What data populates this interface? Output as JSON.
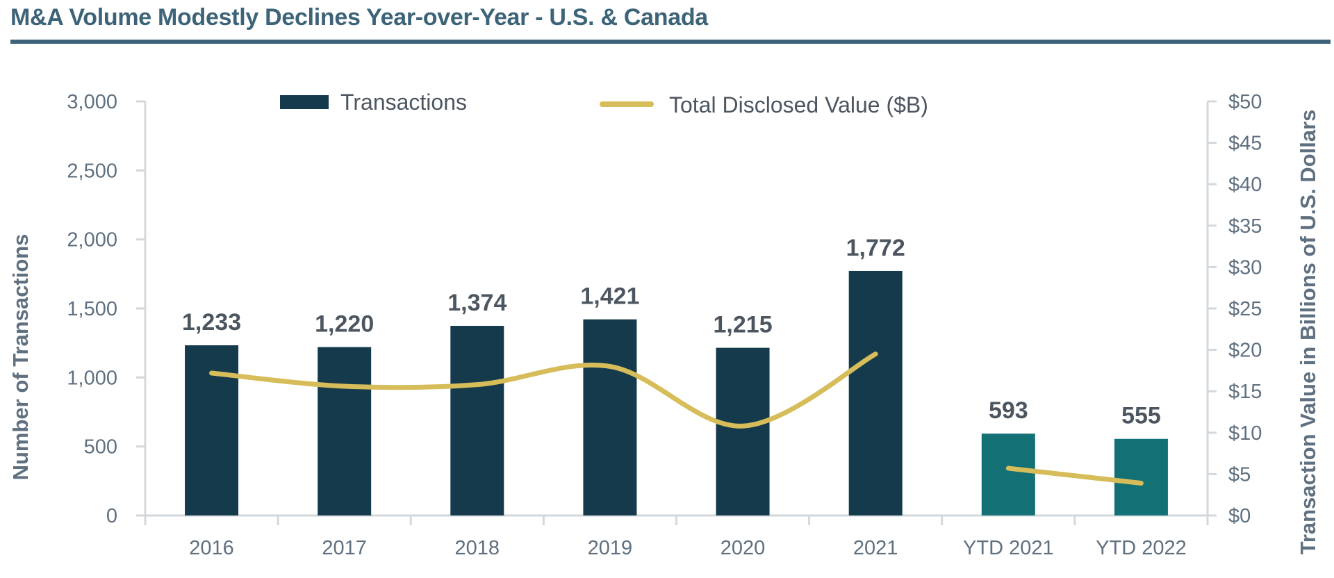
{
  "title": "M&A Volume Modestly Declines Year-over-Year - U.S. & Canada",
  "colors": {
    "title": "#3c6378",
    "bar_primary": "#143a4c",
    "bar_ytd": "#137074",
    "line": "#d6bd5a",
    "axis": "#d3d8dd",
    "text": "#5f7080"
  },
  "chart_data": {
    "type": "bar",
    "categories": [
      "2016",
      "2017",
      "2018",
      "2019",
      "2020",
      "2021",
      "YTD 2021",
      "YTD 2022"
    ],
    "series": [
      {
        "name": "Transactions",
        "kind": "bar",
        "axis": "left",
        "values": [
          1233,
          1220,
          1374,
          1421,
          1215,
          1772,
          593,
          555
        ],
        "labels": [
          "1,233",
          "1,220",
          "1,374",
          "1,421",
          "1,215",
          "1,772",
          "593",
          "555"
        ],
        "ytd_flags": [
          false,
          false,
          false,
          false,
          false,
          false,
          true,
          true
        ]
      },
      {
        "name": "Total Disclosed Value ($B)",
        "kind": "line",
        "axis": "right",
        "values": [
          17.2,
          15.6,
          15.8,
          18.0,
          10.8,
          19.5,
          5.7,
          3.9
        ],
        "segments": [
          [
            0,
            5
          ],
          [
            6,
            7
          ]
        ]
      }
    ],
    "y_left": {
      "label": "Number of Transactions",
      "range": [
        0,
        3000
      ],
      "ticks": [
        0,
        500,
        1000,
        1500,
        2000,
        2500,
        3000
      ],
      "tick_labels": [
        "0",
        "500",
        "1,000",
        "1,500",
        "2,000",
        "2,500",
        "3,000"
      ]
    },
    "y_right": {
      "label": "Transaction Value in Billions of U.S. Dollars",
      "range": [
        0,
        50
      ],
      "ticks": [
        0,
        5,
        10,
        15,
        20,
        25,
        30,
        35,
        40,
        45,
        50
      ],
      "tick_labels": [
        "$0",
        "$5",
        "$10",
        "$15",
        "$20",
        "$25",
        "$30",
        "$35",
        "$40",
        "$45",
        "$50"
      ]
    },
    "xlabel": "",
    "grid": false,
    "legend": {
      "placement": "top",
      "entries": [
        "Transactions",
        "Total Disclosed Value ($B)"
      ]
    }
  }
}
